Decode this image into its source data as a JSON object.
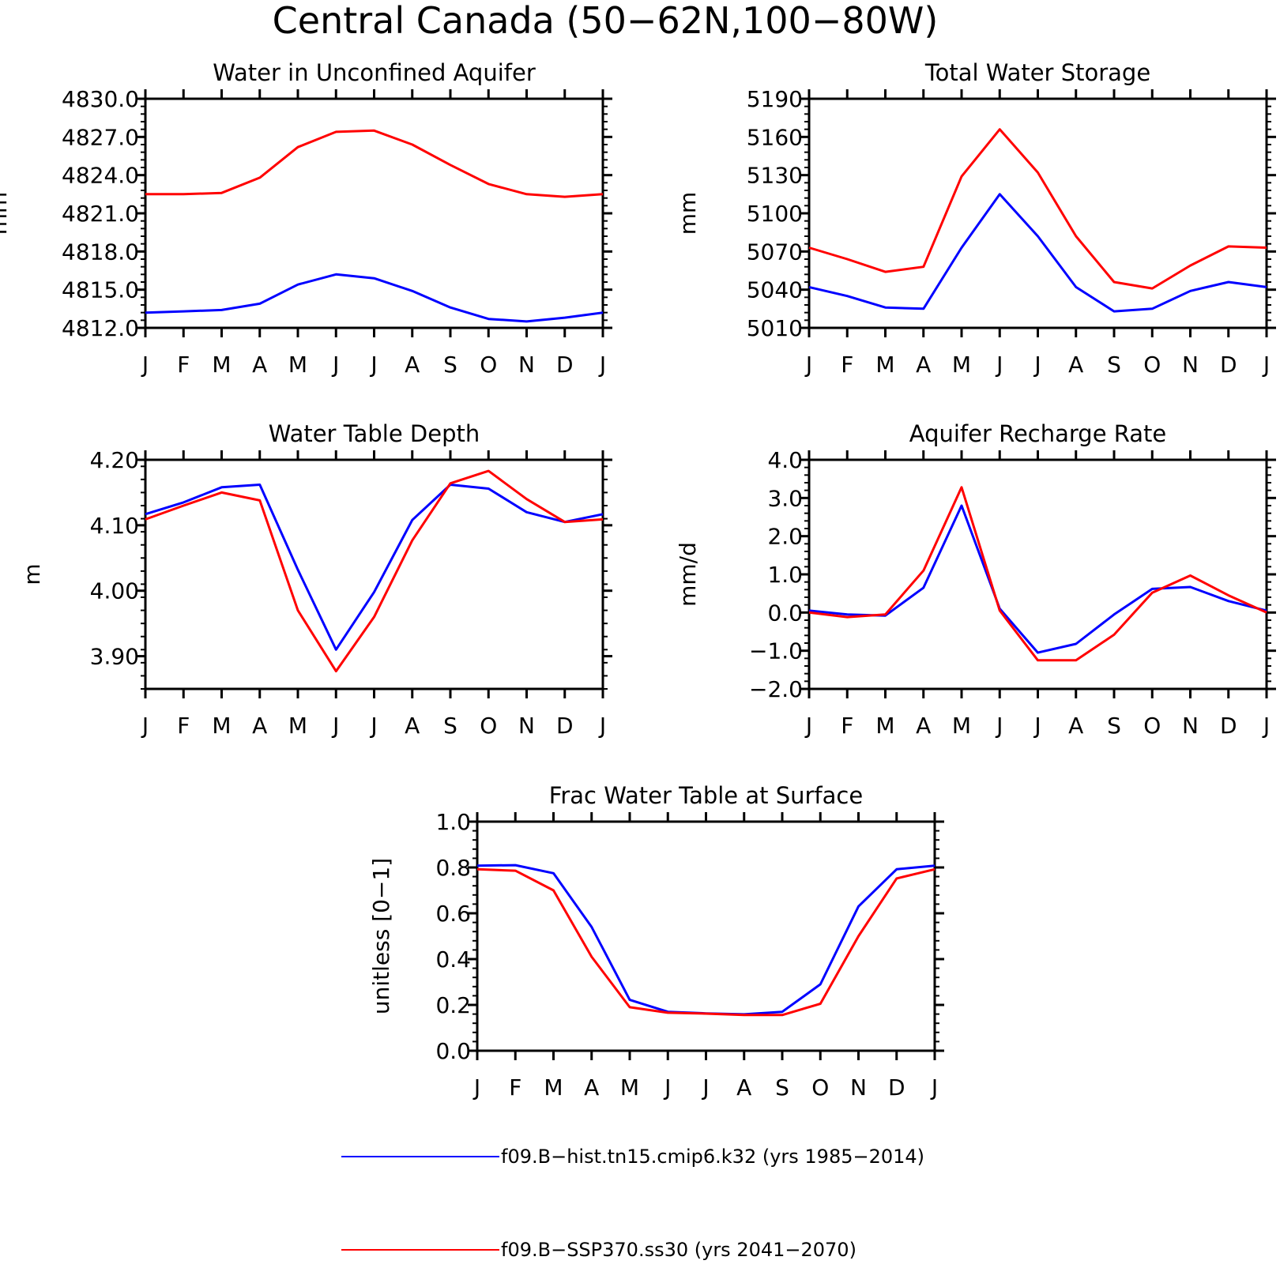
{
  "title": "Central Canada (50−62N,100−80W)",
  "months": [
    "J",
    "F",
    "M",
    "A",
    "M",
    "J",
    "J",
    "A",
    "S",
    "O",
    "N",
    "D",
    "J"
  ],
  "colors": {
    "hist": "#0000ff",
    "ssp": "#ff0000"
  },
  "legend": [
    {
      "key": "hist",
      "label": "f09.B−hist.tn15.cmip6.k32 (yrs 1985−2014)"
    },
    {
      "key": "ssp",
      "label": "f09.B−SSP370.ss30 (yrs 2041−2070)"
    }
  ],
  "chart_data": [
    {
      "type": "line",
      "title": "Water in Unconfined Aquifer",
      "ylabel": "mm",
      "ylim": [
        4812.0,
        4830.0
      ],
      "yticks": [
        "4812.0",
        "4815.0",
        "4818.0",
        "4821.0",
        "4824.0",
        "4827.0",
        "4830.0"
      ],
      "x": [
        "J",
        "F",
        "M",
        "A",
        "M",
        "J",
        "J",
        "A",
        "S",
        "O",
        "N",
        "D",
        "J"
      ],
      "series": [
        {
          "key": "hist",
          "values": [
            4813.2,
            4813.3,
            4813.4,
            4813.9,
            4815.4,
            4816.2,
            4815.9,
            4814.9,
            4813.6,
            4812.7,
            4812.5,
            4812.8,
            4813.2
          ]
        },
        {
          "key": "ssp",
          "values": [
            4822.5,
            4822.5,
            4822.6,
            4823.8,
            4826.2,
            4827.4,
            4827.5,
            4826.4,
            4824.8,
            4823.3,
            4822.5,
            4822.3,
            4822.5
          ]
        }
      ]
    },
    {
      "type": "line",
      "title": "Total Water Storage",
      "ylabel": "mm",
      "ylim": [
        5010,
        5190
      ],
      "yticks": [
        "5010",
        "5040",
        "5070",
        "5100",
        "5130",
        "5160",
        "5190"
      ],
      "x": [
        "J",
        "F",
        "M",
        "A",
        "M",
        "J",
        "J",
        "A",
        "S",
        "O",
        "N",
        "D",
        "J"
      ],
      "series": [
        {
          "key": "hist",
          "values": [
            5042,
            5035,
            5026,
            5025,
            5073,
            5115,
            5082,
            5042,
            5023,
            5025,
            5039,
            5046,
            5042
          ]
        },
        {
          "key": "ssp",
          "values": [
            5073,
            5064,
            5054,
            5058,
            5129,
            5166,
            5132,
            5082,
            5046,
            5041,
            5059,
            5074,
            5073
          ]
        }
      ]
    },
    {
      "type": "line",
      "title": "Water Table Depth",
      "ylabel": "m",
      "ylim": [
        3.85,
        4.2
      ],
      "yticks": [
        "3.90",
        "4.00",
        "4.10",
        "4.20"
      ],
      "x": [
        "J",
        "F",
        "M",
        "A",
        "M",
        "J",
        "J",
        "A",
        "S",
        "O",
        "N",
        "D",
        "J"
      ],
      "series": [
        {
          "key": "hist",
          "values": [
            4.117,
            4.135,
            4.158,
            4.162,
            4.032,
            3.91,
            3.998,
            4.108,
            4.162,
            4.156,
            4.12,
            4.105,
            4.117
          ]
        },
        {
          "key": "ssp",
          "values": [
            4.109,
            4.13,
            4.15,
            4.138,
            3.97,
            3.877,
            3.96,
            4.077,
            4.164,
            4.183,
            4.14,
            4.105,
            4.109
          ]
        }
      ]
    },
    {
      "type": "line",
      "title": "Aquifer Recharge Rate",
      "ylabel": "mm/d",
      "ylim": [
        -2.0,
        4.0
      ],
      "yticks": [
        "−2.0",
        "−1.0",
        "0.0",
        "1.0",
        "2.0",
        "3.0",
        "4.0"
      ],
      "x": [
        "J",
        "F",
        "M",
        "A",
        "M",
        "J",
        "J",
        "A",
        "S",
        "O",
        "N",
        "D",
        "J"
      ],
      "series": [
        {
          "key": "hist",
          "values": [
            0.05,
            -0.05,
            -0.08,
            0.65,
            2.8,
            0.1,
            -1.05,
            -0.82,
            -0.05,
            0.62,
            0.67,
            0.3,
            0.05
          ]
        },
        {
          "key": "ssp",
          "values": [
            0.0,
            -0.12,
            -0.05,
            1.1,
            3.28,
            0.05,
            -1.25,
            -1.25,
            -0.58,
            0.52,
            0.97,
            0.45,
            0.0
          ]
        }
      ]
    },
    {
      "type": "line",
      "title": "Frac Water Table at Surface",
      "ylabel": "unitless [0−1]",
      "ylim": [
        0.0,
        1.0
      ],
      "yticks": [
        "0.0",
        "0.2",
        "0.4",
        "0.6",
        "0.8",
        "1.0"
      ],
      "x": [
        "J",
        "F",
        "M",
        "A",
        "M",
        "J",
        "J",
        "A",
        "S",
        "O",
        "N",
        "D",
        "J"
      ],
      "series": [
        {
          "key": "hist",
          "values": [
            0.808,
            0.81,
            0.775,
            0.54,
            0.222,
            0.17,
            0.163,
            0.159,
            0.17,
            0.29,
            0.63,
            0.792,
            0.808
          ]
        },
        {
          "key": "ssp",
          "values": [
            0.792,
            0.786,
            0.7,
            0.41,
            0.19,
            0.166,
            0.162,
            0.156,
            0.156,
            0.205,
            0.5,
            0.752,
            0.792
          ]
        }
      ]
    }
  ]
}
